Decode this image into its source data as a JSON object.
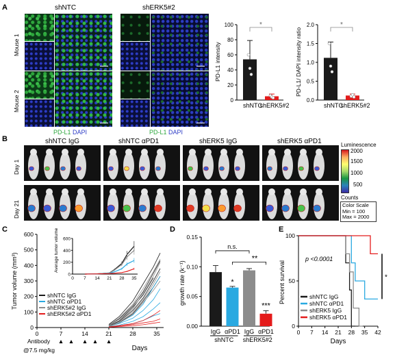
{
  "panel_letters": [
    "A",
    "B",
    "C",
    "D",
    "E"
  ],
  "panel_a": {
    "groups": [
      "shNTC",
      "shERK5#2"
    ],
    "rows": [
      "Mouse 1",
      "Mouse 2"
    ],
    "legend_green": "PD-L1",
    "legend_blue": "DAPI",
    "colors": {
      "green": "#2ea73d",
      "blue": "#2d3cc6"
    }
  },
  "panel_b": {
    "groups": [
      "shNTC IgG",
      "shNTC αPD1",
      "shERK5 IgG",
      "shERK5 αPD1"
    ],
    "days": [
      "Day 1",
      "Day 21"
    ],
    "colorbar_title": "Luminescence",
    "colorbar_ticks": [
      "2000",
      "1500",
      "1000",
      "500"
    ],
    "counts_label": "Counts",
    "color_scale_lines": [
      "Color Scale",
      "Min = 100",
      "Max = 2000"
    ]
  },
  "chart_data": [
    {
      "id": "A-left",
      "type": "bar",
      "categories": [
        "shNTC",
        "shERK5#2"
      ],
      "values": [
        54,
        5
      ],
      "errors": [
        25,
        3
      ],
      "ylabel": "PD-L1 intensity",
      "ylim": [
        0,
        100
      ],
      "yticks": [
        "0",
        "20",
        "40",
        "60",
        "80",
        "100"
      ],
      "bar_colors": [
        "#1a1a1a",
        "#e41b1b"
      ],
      "points": [
        [
          60,
          42,
          34
        ],
        [
          6,
          4,
          3
        ]
      ],
      "significance": "*"
    },
    {
      "id": "A-right",
      "type": "bar",
      "categories": [
        "shNTC",
        "shERK5#2"
      ],
      "values": [
        1.12,
        0.12
      ],
      "errors": [
        0.42,
        0.04
      ],
      "ylabel": "PD-L1/ DAPI intensity ratio",
      "ylim": [
        0,
        2.0
      ],
      "yticks": [
        "0.0",
        "0.5",
        "1.0",
        "1.5",
        "2.0"
      ],
      "bar_colors": [
        "#1a1a1a",
        "#e41b1b"
      ],
      "points": [
        [
          1.5,
          0.9,
          0.75
        ],
        [
          0.1,
          0.14,
          0.08
        ]
      ],
      "significance": "*"
    },
    {
      "id": "C",
      "type": "line",
      "ylabel": "Tumor volume (mm³)",
      "xlabel": "Days",
      "ylim": [
        0,
        600
      ],
      "yticks": [
        "0",
        "100",
        "200",
        "300",
        "400",
        "500",
        "600"
      ],
      "xlim": [
        0,
        37
      ],
      "xticks": [
        "0",
        "7",
        "14",
        "21",
        "28",
        "35"
      ],
      "series": [
        {
          "name": "shNTC IgG",
          "color": "#1a1a1a",
          "curves": [
            [
              [
                21,
                15
              ],
              [
                24,
                55
              ],
              [
                28,
                140
              ],
              [
                31,
                230
              ],
              [
                34,
                350
              ],
              [
                36,
                430
              ]
            ],
            [
              [
                21,
                10
              ],
              [
                24,
                40
              ],
              [
                28,
                110
              ],
              [
                31,
                190
              ],
              [
                34,
                300
              ],
              [
                36,
                380
              ]
            ],
            [
              [
                21,
                20
              ],
              [
                24,
                70
              ],
              [
                28,
                170
              ],
              [
                31,
                280
              ],
              [
                34,
                390
              ],
              [
                36,
                480
              ]
            ],
            [
              [
                21,
                5
              ],
              [
                24,
                30
              ],
              [
                28,
                90
              ],
              [
                31,
                170
              ],
              [
                34,
                260
              ],
              [
                36,
                330
              ]
            ],
            [
              [
                21,
                12
              ],
              [
                24,
                45
              ],
              [
                28,
                130
              ],
              [
                31,
                210
              ],
              [
                34,
                320
              ]
            ]
          ]
        },
        {
          "name": "shNTC αPD1",
          "color": "#29a9e1",
          "curves": [
            [
              [
                21,
                8
              ],
              [
                24,
                25
              ],
              [
                28,
                60
              ],
              [
                31,
                110
              ],
              [
                34,
                180
              ],
              [
                36,
                250
              ]
            ],
            [
              [
                21,
                5
              ],
              [
                24,
                15
              ],
              [
                28,
                40
              ],
              [
                31,
                70
              ],
              [
                34,
                120
              ],
              [
                36,
                160
              ]
            ],
            [
              [
                21,
                10
              ],
              [
                24,
                30
              ],
              [
                28,
                80
              ],
              [
                31,
                150
              ],
              [
                34,
                260
              ],
              [
                36,
                330
              ]
            ],
            [
              [
                21,
                3
              ],
              [
                24,
                10
              ],
              [
                28,
                25
              ],
              [
                31,
                45
              ],
              [
                34,
                75
              ],
              [
                36,
                90
              ]
            ]
          ]
        },
        {
          "name": "shERK5#2 IgG",
          "color": "#8c8c8c",
          "curves": [
            [
              [
                21,
                12
              ],
              [
                24,
                45
              ],
              [
                28,
                120
              ],
              [
                31,
                220
              ],
              [
                34,
                330
              ],
              [
                36,
                420
              ]
            ],
            [
              [
                21,
                8
              ],
              [
                24,
                35
              ],
              [
                28,
                100
              ],
              [
                31,
                180
              ],
              [
                34,
                280
              ],
              [
                36,
                360
              ]
            ],
            [
              [
                21,
                15
              ],
              [
                24,
                60
              ],
              [
                28,
                150
              ],
              [
                31,
                250
              ],
              [
                34,
                360
              ],
              [
                36,
                440
              ]
            ],
            [
              [
                21,
                6
              ],
              [
                24,
                28
              ],
              [
                28,
                85
              ],
              [
                31,
                160
              ],
              [
                34,
                240
              ],
              [
                36,
                300
              ]
            ]
          ]
        },
        {
          "name": "shERK5#2 αPD1",
          "color": "#e41b1b",
          "curves": [
            [
              [
                21,
                3
              ],
              [
                24,
                10
              ],
              [
                28,
                20
              ],
              [
                31,
                30
              ],
              [
                34,
                40
              ],
              [
                36,
                55
              ]
            ],
            [
              [
                21,
                2
              ],
              [
                24,
                6
              ],
              [
                28,
                12
              ],
              [
                31,
                18
              ],
              [
                34,
                28
              ],
              [
                36,
                35
              ]
            ],
            [
              [
                21,
                4
              ],
              [
                24,
                12
              ],
              [
                28,
                25
              ],
              [
                31,
                45
              ],
              [
                34,
                80
              ],
              [
                36,
                110
              ]
            ]
          ]
        }
      ],
      "legend": [
        "shNTC IgG",
        "shNTC αPD1",
        "shERK5#2 IgG",
        "shERK5#2 αPD1"
      ],
      "antibody_label": "Antibody",
      "dose_label": "@7.5 mg/kg",
      "antibody_days": [
        7,
        10,
        14,
        17,
        21
      ]
    },
    {
      "id": "C-inset",
      "type": "line",
      "ylabel": "Average tumor volume (mm³)",
      "ylim": [
        0,
        600
      ],
      "yticks": [
        "0",
        "200",
        "400",
        "600"
      ],
      "xticks": [
        "0",
        "7",
        "14",
        "21",
        "28",
        "35"
      ],
      "series": [
        {
          "name": "shNTC IgG",
          "color": "#1a1a1a",
          "x": [
            7,
            14,
            21,
            24,
            28,
            31,
            35
          ],
          "y": [
            0,
            5,
            20,
            80,
            180,
            330,
            470
          ]
        },
        {
          "name": "shERK5#2 IgG",
          "color": "#8c8c8c",
          "x": [
            7,
            14,
            21,
            24,
            28,
            31,
            35
          ],
          "y": [
            0,
            5,
            18,
            70,
            160,
            290,
            400
          ]
        },
        {
          "name": "shNTC αPD1",
          "color": "#29a9e1",
          "x": [
            7,
            14,
            21,
            24,
            28,
            31,
            35
          ],
          "y": [
            0,
            4,
            12,
            40,
            90,
            170,
            230
          ]
        },
        {
          "name": "shERK5#2 αPD1",
          "color": "#e41b1b",
          "x": [
            7,
            14,
            21,
            24,
            28,
            31,
            35
          ],
          "y": [
            0,
            3,
            8,
            15,
            25,
            45,
            90
          ]
        }
      ]
    },
    {
      "id": "D",
      "type": "bar",
      "ylabel": "growth rate (k⁻¹)",
      "ylim": [
        0,
        0.15
      ],
      "yticks": [
        "0.00",
        "0.05",
        "0.10",
        "0.15"
      ],
      "categories": [
        "IgG",
        "αPD1",
        "IgG",
        "αPD1"
      ],
      "group_labels": [
        "shNTC",
        "shERK5#2"
      ],
      "values": [
        0.091,
        0.065,
        0.094,
        0.021
      ],
      "errors": [
        0.011,
        0.002,
        0.003,
        0.005
      ],
      "bar_colors": [
        "#1a1a1a",
        "#29a9e1",
        "#8c8c8c",
        "#e41b1b"
      ],
      "annotations": {
        "ns": "n.s.",
        "star1": "*",
        "star2": "**",
        "star3": "***"
      }
    },
    {
      "id": "E",
      "type": "line",
      "ylabel": "Percent survival",
      "xlabel": "Days",
      "ylim": [
        0,
        100
      ],
      "yticks": [
        "0",
        "50",
        "100"
      ],
      "xlim": [
        0,
        42
      ],
      "xticks": [
        "0",
        "7",
        "14",
        "21",
        "28",
        "35",
        "42"
      ],
      "pvalue": "p <0.0001",
      "significance": "*",
      "series": [
        {
          "name": "shNTC IgG",
          "color": "#1a1a1a",
          "steps": [
            [
              0,
              100
            ],
            [
              25,
              100
            ],
            [
              25,
              70
            ],
            [
              27,
              70
            ],
            [
              27,
              40
            ],
            [
              28,
              40
            ],
            [
              28,
              0
            ],
            [
              30,
              0
            ]
          ]
        },
        {
          "name": "shNTC αPD1",
          "color": "#29a9e1",
          "steps": [
            [
              0,
              100
            ],
            [
              28,
              100
            ],
            [
              28,
              70
            ],
            [
              30,
              70
            ],
            [
              30,
              50
            ],
            [
              35,
              50
            ],
            [
              35,
              30
            ],
            [
              42,
              30
            ]
          ]
        },
        {
          "name": "shERK5 IgG",
          "color": "#8c8c8c",
          "steps": [
            [
              0,
              100
            ],
            [
              25,
              100
            ],
            [
              25,
              80
            ],
            [
              27,
              80
            ],
            [
              27,
              60
            ],
            [
              29,
              60
            ],
            [
              29,
              20
            ],
            [
              32,
              20
            ],
            [
              32,
              0
            ],
            [
              34,
              0
            ]
          ]
        },
        {
          "name": "shERK5 αPD1",
          "color": "#e41b1b",
          "steps": [
            [
              0,
              100
            ],
            [
              38,
              100
            ],
            [
              38,
              80
            ],
            [
              42,
              80
            ]
          ]
        }
      ]
    }
  ]
}
